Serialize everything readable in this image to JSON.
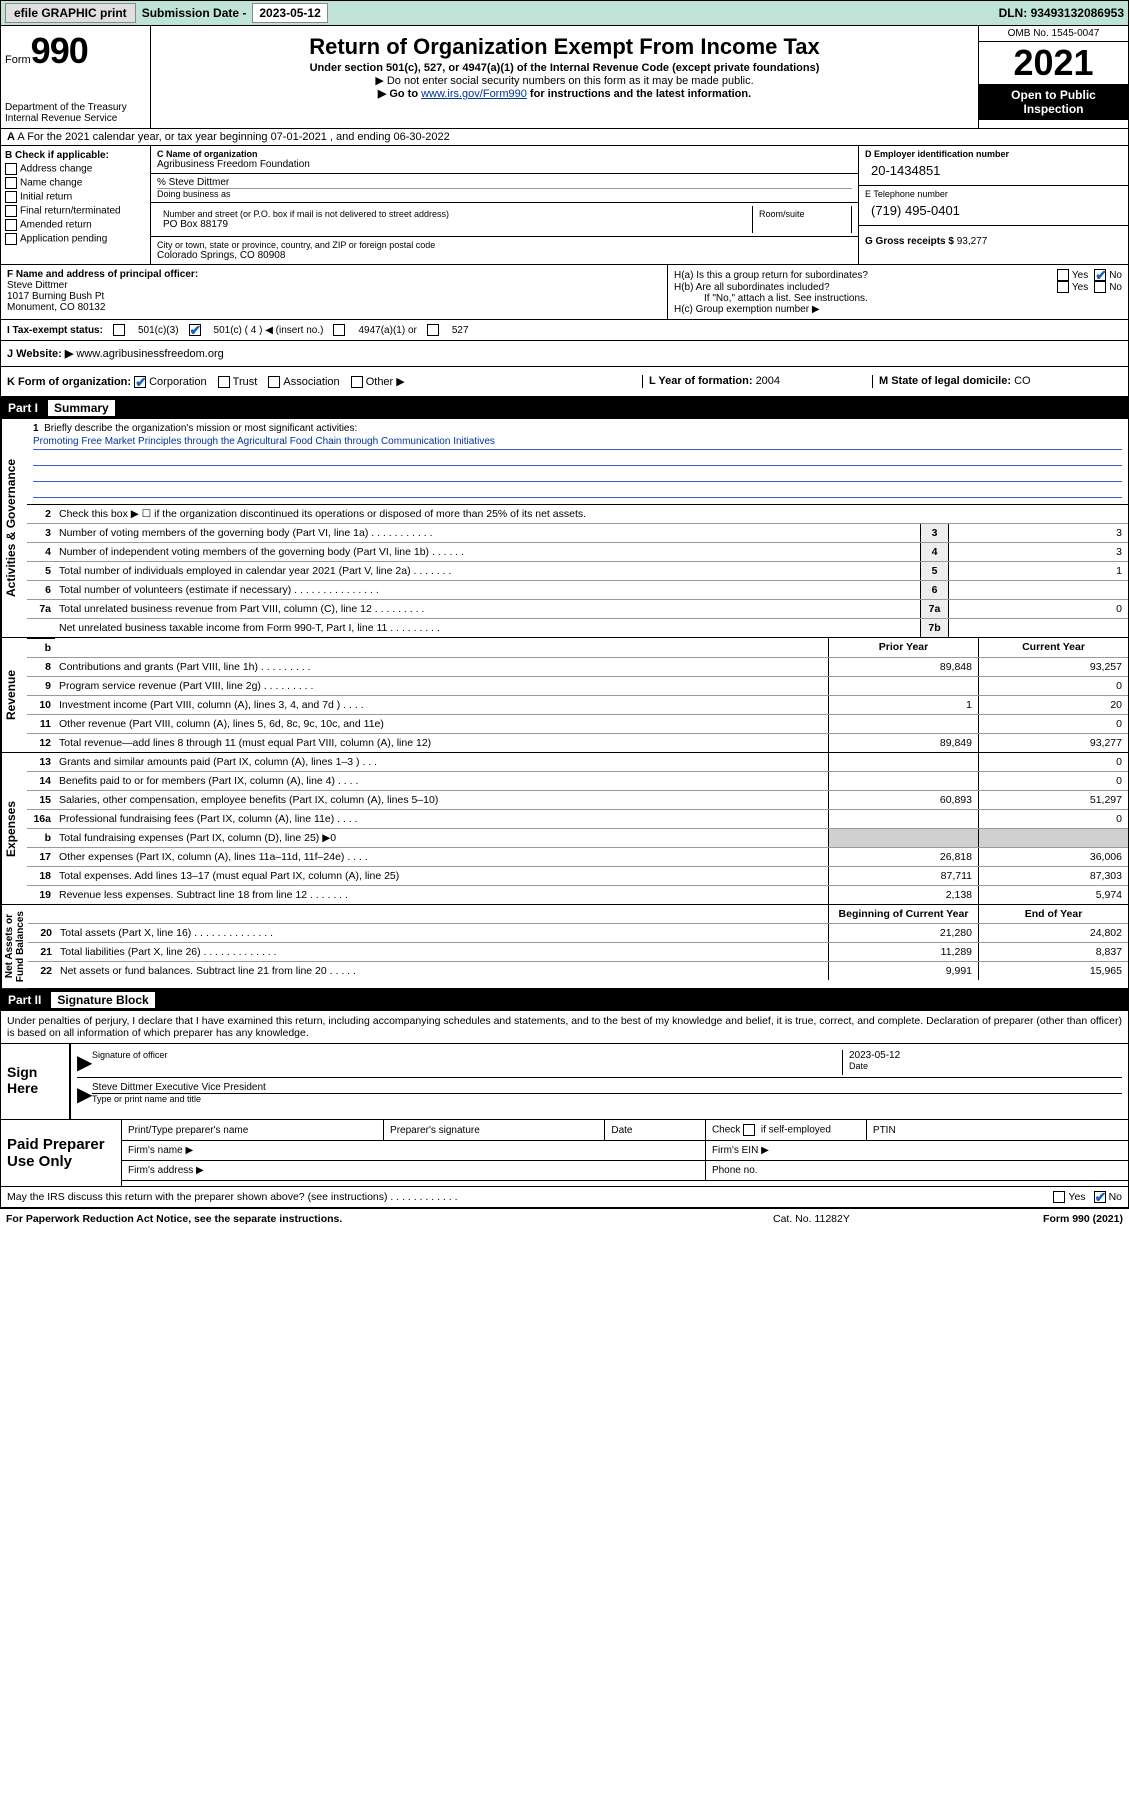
{
  "topbar": {
    "efile": "efile GRAPHIC print",
    "sub_label": "Submission Date - ",
    "sub_date": "2023-05-12",
    "dln_label": "DLN: ",
    "dln": "93493132086953"
  },
  "header": {
    "form_word": "Form",
    "form_no": "990",
    "dept": "Department of the Treasury\nInternal Revenue Service",
    "title": "Return of Organization Exempt From Income Tax",
    "sub1": "Under section 501(c), 527, or 4947(a)(1) of the Internal Revenue Code (except private foundations)",
    "sub2": "▶ Do not enter social security numbers on this form as it may be made public.",
    "sub3_pre": "▶ Go to ",
    "sub3_link": "www.irs.gov/Form990",
    "sub3_post": " for instructions and the latest information.",
    "omb": "OMB No. 1545-0047",
    "year": "2021",
    "open": "Open to Public Inspection"
  },
  "rowA": "A For the 2021 calendar year, or tax year beginning 07-01-2021   , and ending 06-30-2022",
  "colB": {
    "label": "B Check if applicable:",
    "items": [
      "Address change",
      "Name change",
      "Initial return",
      "Final return/terminated",
      "Amended return",
      "Application pending"
    ]
  },
  "colC": {
    "c_label": "C Name of organization",
    "name": "Agribusiness Freedom Foundation",
    "care_label": "% Steve Dittmer",
    "dba_label": "Doing business as",
    "addr_label": "Number and street (or P.O. box if mail is not delivered to street address)",
    "room_label": "Room/suite",
    "addr": "PO Box 88179",
    "city_label": "City or town, state or province, country, and ZIP or foreign postal code",
    "city": "Colorado Springs, CO  80908"
  },
  "colD": {
    "d_label": "D Employer identification number",
    "ein": "20-1434851",
    "e_label": "E Telephone number",
    "phone": "(719) 495-0401",
    "g_label": "G Gross receipts $ ",
    "gross": "93,277"
  },
  "sectionF": {
    "f_label": "F Name and address of principal officer:",
    "name": "Steve Dittmer",
    "addr1": "1017 Burning Bush Pt",
    "addr2": "Monument, CO  80132"
  },
  "sectionH": {
    "ha": "H(a)  Is this a group return for subordinates?",
    "hb": "H(b)  Are all subordinates included?",
    "hb_note": "If \"No,\" attach a list. See instructions.",
    "hc": "H(c)  Group exemption number ▶",
    "yes": "Yes",
    "no": "No"
  },
  "taxrow": {
    "i_label": "I  Tax-exempt status:",
    "c3": "501(c)(3)",
    "c": "501(c) ( 4 ) ◀ (insert no.)",
    "a1": "4947(a)(1) or",
    "s527": "527"
  },
  "webrow": {
    "j_label": "J  Website: ▶ ",
    "url": "www.agribusinessfreedom.org"
  },
  "rowK": {
    "label": "K Form of organization:",
    "corp": "Corporation",
    "trust": "Trust",
    "assoc": "Association",
    "other": "Other ▶",
    "l_label": "L Year of formation: ",
    "l_val": "2004",
    "m_label": "M State of legal domicile: ",
    "m_val": "CO"
  },
  "part1": {
    "label": "Part I",
    "title": "Summary"
  },
  "summary": {
    "line1_label": "Briefly describe the organization's mission or most significant activities:",
    "mission": "Promoting Free Market Principles through the Agricultural Food Chain through Communication Initiatives",
    "line2": "Check this box ▶ ☐  if the organization discontinued its operations or disposed of more than 25% of its net assets.",
    "lines_gov": [
      {
        "n": "3",
        "d": "Number of voting members of the governing body (Part VI, line 1a)   .   .   .   .   .   .   .   .   .   .   .",
        "b": "3",
        "v": "3"
      },
      {
        "n": "4",
        "d": "Number of independent voting members of the governing body (Part VI, line 1b)   .   .   .   .   .   .",
        "b": "4",
        "v": "3"
      },
      {
        "n": "5",
        "d": "Total number of individuals employed in calendar year 2021 (Part V, line 2a)   .   .   .   .   .   .   .",
        "b": "5",
        "v": "1"
      },
      {
        "n": "6",
        "d": "Total number of volunteers (estimate if necessary)   .   .   .   .   .   .   .   .   .   .   .   .   .   .   .",
        "b": "6",
        "v": ""
      },
      {
        "n": "7a",
        "d": "Total unrelated business revenue from Part VIII, column (C), line 12   .   .   .   .   .   .   .   .   .",
        "b": "7a",
        "v": "0"
      },
      {
        "n": "",
        "d": "Net unrelated business taxable income from Form 990-T, Part I, line 11  .   .   .   .   .   .   .   .   .",
        "b": "7b",
        "v": ""
      }
    ],
    "col_hdr_prior": "Prior Year",
    "col_hdr_curr": "Current Year",
    "lines_rev": [
      {
        "n": "8",
        "d": "Contributions and grants (Part VIII, line 1h)   .   .   .   .   .   .   .   .   .",
        "p": "89,848",
        "c": "93,257"
      },
      {
        "n": "9",
        "d": "Program service revenue (Part VIII, line 2g)   .   .   .   .   .   .   .   .   .",
        "p": "",
        "c": "0"
      },
      {
        "n": "10",
        "d": "Investment income (Part VIII, column (A), lines 3, 4, and 7d )   .   .   .   .",
        "p": "1",
        "c": "20"
      },
      {
        "n": "11",
        "d": "Other revenue (Part VIII, column (A), lines 5, 6d, 8c, 9c, 10c, and 11e)",
        "p": "",
        "c": "0"
      },
      {
        "n": "12",
        "d": "Total revenue—add lines 8 through 11 (must equal Part VIII, column (A), line 12)",
        "p": "89,849",
        "c": "93,277"
      }
    ],
    "lines_exp": [
      {
        "n": "13",
        "d": "Grants and similar amounts paid (Part IX, column (A), lines 1–3 )   .   .   .",
        "p": "",
        "c": "0"
      },
      {
        "n": "14",
        "d": "Benefits paid to or for members (Part IX, column (A), line 4)   .   .   .   .",
        "p": "",
        "c": "0"
      },
      {
        "n": "15",
        "d": "Salaries, other compensation, employee benefits (Part IX, column (A), lines 5–10)",
        "p": "60,893",
        "c": "51,297"
      },
      {
        "n": "16a",
        "d": "Professional fundraising fees (Part IX, column (A), line 11e)   .   .   .   .",
        "p": "",
        "c": "0"
      },
      {
        "n": "b",
        "d": "Total fundraising expenses (Part IX, column (D), line 25) ▶0",
        "p": "__shade__",
        "c": "__shade__"
      },
      {
        "n": "17",
        "d": "Other expenses (Part IX, column (A), lines 11a–11d, 11f–24e)   .   .   .   .",
        "p": "26,818",
        "c": "36,006"
      },
      {
        "n": "18",
        "d": "Total expenses. Add lines 13–17 (must equal Part IX, column (A), line 25)",
        "p": "87,711",
        "c": "87,303"
      },
      {
        "n": "19",
        "d": "Revenue less expenses. Subtract line 18 from line 12   .   .   .   .   .   .   .",
        "p": "2,138",
        "c": "5,974"
      }
    ],
    "col_hdr_beg": "Beginning of Current Year",
    "col_hdr_end": "End of Year",
    "lines_bal": [
      {
        "n": "20",
        "d": "Total assets (Part X, line 16)   .   .   .   .   .   .   .   .   .   .   .   .   .   .",
        "p": "21,280",
        "c": "24,802"
      },
      {
        "n": "21",
        "d": "Total liabilities (Part X, line 26)   .   .   .   .   .   .   .   .   .   .   .   .   .",
        "p": "11,289",
        "c": "8,837"
      },
      {
        "n": "22",
        "d": "Net assets or fund balances. Subtract line 21 from line 20   .   .   .   .   .",
        "p": "9,991",
        "c": "15,965"
      }
    ]
  },
  "part2": {
    "label": "Part II",
    "title": "Signature Block"
  },
  "sig": {
    "intro": "Under penalties of perjury, I declare that I have examined this return, including accompanying schedules and statements, and to the best of my knowledge and belief, it is true, correct, and complete. Declaration of preparer (other than officer) is based on all information of which preparer has any knowledge.",
    "sign_here": "Sign Here",
    "sig_officer": "Signature of officer",
    "date_label": "Date",
    "date": "2023-05-12",
    "name_title": "Steve Dittmer  Executive Vice President",
    "type_name": "Type or print name and title"
  },
  "paid": {
    "label": "Paid Preparer Use Only",
    "h1": "Print/Type preparer's name",
    "h2": "Preparer's signature",
    "h3": "Date",
    "h4_pre": "Check ",
    "h4_post": " if self-employed",
    "h5": "PTIN",
    "firm_name": "Firm's name   ▶",
    "firm_ein": "Firm's EIN ▶",
    "firm_addr": "Firm's address ▶",
    "phone": "Phone no."
  },
  "discuss": {
    "text": "May the IRS discuss this return with the preparer shown above? (see instructions)   .   .   .   .   .   .   .   .   .   .   .   .",
    "yes": "Yes",
    "no": "No"
  },
  "footer": {
    "l": "For Paperwork Reduction Act Notice, see the separate instructions.",
    "c": "Cat. No. 11282Y",
    "r": "Form 990 (2021)"
  },
  "colors": {
    "topbar_bg": "#bfe3d7",
    "link": "#003399",
    "check_blue": "#1565c0",
    "shade": "#d0d0d0",
    "mission_line": "#3a5cd8"
  }
}
